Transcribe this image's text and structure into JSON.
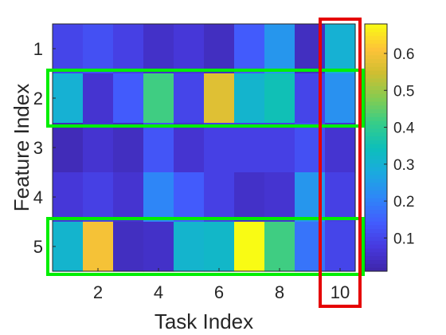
{
  "chart_data": {
    "type": "heatmap",
    "title": "",
    "xlabel": "Task Index",
    "ylabel": "Feature Index",
    "x": [
      1,
      2,
      3,
      4,
      5,
      6,
      7,
      8,
      9,
      10
    ],
    "y": [
      1,
      2,
      3,
      4,
      5
    ],
    "x_tick_labels": [
      "2",
      "4",
      "6",
      "8",
      "10"
    ],
    "y_tick_labels": [
      "1",
      "2",
      "3",
      "4",
      "5"
    ],
    "values": [
      [
        0.1,
        0.12,
        0.09,
        0.05,
        0.07,
        0.04,
        0.14,
        0.24,
        0.04,
        0.3
      ],
      [
        0.3,
        0.06,
        0.14,
        0.42,
        0.1,
        0.57,
        0.31,
        0.35,
        0.1,
        0.23
      ],
      [
        0.03,
        0.06,
        0.04,
        0.13,
        0.06,
        0.09,
        0.09,
        0.09,
        0.12,
        0.06
      ],
      [
        0.07,
        0.09,
        0.06,
        0.21,
        0.14,
        0.09,
        0.05,
        0.06,
        0.24,
        0.09
      ],
      [
        0.31,
        0.6,
        0.04,
        0.05,
        0.31,
        0.32,
        0.68,
        0.42,
        0.18,
        0.1
      ]
    ],
    "colormap": "parula",
    "clim": [
      0.01,
      0.68
    ],
    "colorbar": {
      "ticks": [
        0.1,
        0.2,
        0.3,
        0.4,
        0.5,
        0.6
      ],
      "labels": [
        "0.1",
        "0.2",
        "0.3",
        "0.4",
        "0.5",
        "0.6"
      ]
    },
    "highlights": [
      {
        "kind": "row",
        "index": 2,
        "color": "#00ee00"
      },
      {
        "kind": "row",
        "index": 5,
        "color": "#00ee00"
      },
      {
        "kind": "column",
        "index": 10,
        "color": "#e50000"
      }
    ]
  }
}
